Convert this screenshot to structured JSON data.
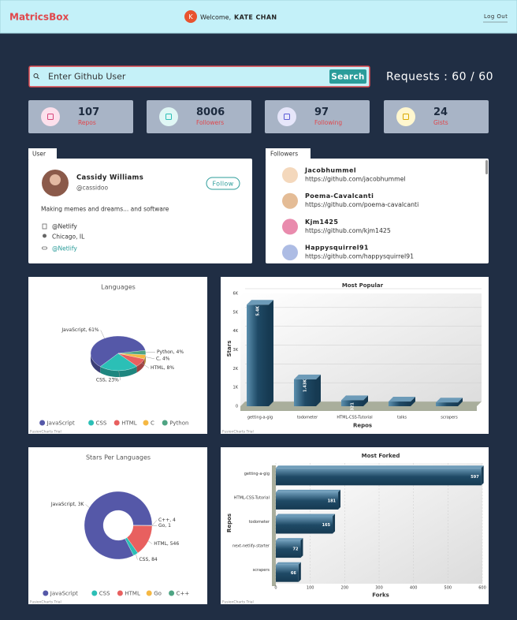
{
  "header": {
    "brand": "MatricsBox",
    "avatar_initial": "K",
    "welcome": "Welcome,",
    "user_name": "KATE CHAN",
    "logout": "Log Out"
  },
  "search": {
    "placeholder": "Enter Github User",
    "button": "Search",
    "requests": "Requests : 60 / 60"
  },
  "stats": [
    {
      "value": 107,
      "label": "Repos"
    },
    {
      "value": 8006,
      "label": "Followers"
    },
    {
      "value": 97,
      "label": "Following"
    },
    {
      "value": 24,
      "label": "Gists"
    }
  ],
  "user": {
    "tab": "User",
    "name": "Cassidy Williams",
    "handle": "@cassidoo",
    "follow": "Follow",
    "bio": "Making memes and dreams... and software",
    "company": "@Netlify",
    "location": "Chicago, IL",
    "blog": "@Netlify"
  },
  "followers": {
    "tab": "Followers",
    "items": [
      {
        "name": "Jacobhummel",
        "url": "https://github.com/jacobhummel"
      },
      {
        "name": "Poema-Cavalcanti",
        "url": "https://github.com/poema-cavalcanti"
      },
      {
        "name": "Kjm1425",
        "url": "https://github.com/kjm1425"
      },
      {
        "name": "Happysquirrel91",
        "url": "https://github.com/happysquirrel91"
      }
    ]
  },
  "watermark": "FusionCharts Trial",
  "chart_data": [
    {
      "type": "pie3d",
      "title": "Languages",
      "categories": [
        "JavaScript",
        "CSS",
        "HTML",
        "C",
        "Python"
      ],
      "values": [
        61,
        23,
        8,
        4,
        4
      ],
      "value_labels": [
        "JavaScript, 61%",
        "CSS, 23%",
        "HTML, 8%",
        "C, 4%",
        "Python, 4%"
      ],
      "colors": [
        "#5558a8",
        "#2bbfb6",
        "#e8605f",
        "#f5b843",
        "#4ea483"
      ],
      "legend": "bottom"
    },
    {
      "type": "column3d",
      "title": "Most Popular",
      "categories": [
        "getting-a-gig",
        "todometer",
        "HTML-CSS-Tutorial",
        "talks",
        "scrapers"
      ],
      "values": [
        5400,
        1430,
        321,
        250,
        200
      ],
      "value_labels": [
        "5.4K",
        "1.43K",
        "321",
        null,
        null
      ],
      "color": "#1f4a66",
      "ylim": [
        0,
        6000
      ],
      "yticks": [
        0,
        {
          "value": 1000,
          "label": "1K"
        },
        {
          "value": 2000,
          "label": "2K"
        },
        {
          "value": 3000,
          "label": "3K"
        },
        {
          "value": 4000,
          "label": "4K"
        },
        {
          "value": 5000,
          "label": "5K"
        },
        {
          "value": 6000,
          "label": "6K"
        }
      ],
      "xlabel": "Repos",
      "ylabel": "Stars",
      "grid": true
    },
    {
      "type": "doughnut",
      "title": "Stars Per Languages",
      "categories": [
        "JavaScript",
        "CSS",
        "HTML",
        "Go",
        "C++"
      ],
      "values": [
        3000,
        84,
        546,
        1,
        4
      ],
      "value_labels": [
        "JavaScript, 3K",
        "CSS, 84",
        "HTML, 546",
        "Go, 1",
        "C++, 4"
      ],
      "colors": [
        "#5558a8",
        "#2bbfb6",
        "#e8605f",
        "#f5b843",
        "#4ea483"
      ],
      "legend": "bottom"
    },
    {
      "type": "hbar",
      "title": "Most Forked",
      "categories": [
        "getting-a-gig",
        "HTML-CSS-Tutorial",
        "todometer",
        "next-netlify-starter",
        "scrapers"
      ],
      "values": [
        597,
        181,
        165,
        72,
        66
      ],
      "color": "#1f4a66",
      "xlim": [
        0,
        600
      ],
      "xticks": [
        0,
        100,
        200,
        300,
        400,
        500,
        600
      ],
      "xlabel": "Forks",
      "ylabel": "Repos",
      "grid": true
    }
  ]
}
